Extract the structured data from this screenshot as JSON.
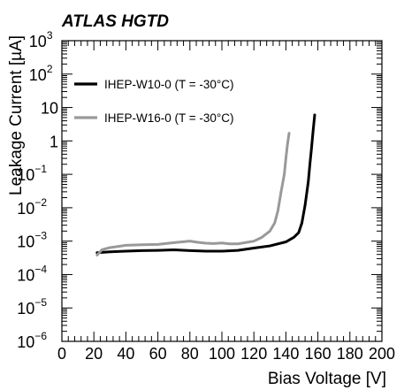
{
  "chart_data": {
    "type": "line",
    "experiment_label": "ATLAS HGTD",
    "xlabel": "Bias Voltage [V]",
    "ylabel": "Leakage Current [µA]",
    "xlim": [
      0,
      200
    ],
    "ylim": [
      1e-06,
      1000
    ],
    "yscale": "log",
    "x_ticks": [
      0,
      20,
      40,
      60,
      80,
      100,
      120,
      140,
      160,
      180,
      200
    ],
    "x_tick_labels": [
      "0",
      "20",
      "40",
      "60",
      "80",
      "100",
      "120",
      "140",
      "160",
      "180",
      "200"
    ],
    "y_ticks": [
      {
        "value": 1e-06,
        "label": "10",
        "exp": "−6"
      },
      {
        "value": 1e-05,
        "label": "10",
        "exp": "−5"
      },
      {
        "value": 0.0001,
        "label": "10",
        "exp": "−4"
      },
      {
        "value": 0.001,
        "label": "10",
        "exp": "−3"
      },
      {
        "value": 0.01,
        "label": "10",
        "exp": "−2"
      },
      {
        "value": 0.1,
        "label": "10",
        "exp": "−1"
      },
      {
        "value": 1,
        "label": "1",
        "exp": ""
      },
      {
        "value": 10,
        "label": "10",
        "exp": ""
      },
      {
        "value": 100,
        "label": "10",
        "exp": "2"
      },
      {
        "value": 1000,
        "label": "10",
        "exp": "3"
      }
    ],
    "legend_position": "top-left",
    "grid": false,
    "series": [
      {
        "name": "IHEP-W10-0 (T = -30°C)",
        "color": "#000000",
        "x": [
          22,
          30,
          40,
          50,
          60,
          70,
          80,
          90,
          100,
          110,
          120,
          130,
          140,
          145,
          148,
          150,
          152,
          154,
          155,
          156,
          157,
          158
        ],
        "y": [
          0.00045,
          0.00048,
          0.0005,
          0.00052,
          0.00053,
          0.00055,
          0.00052,
          0.0005,
          0.0005,
          0.00053,
          0.00062,
          0.00072,
          0.00095,
          0.0013,
          0.0018,
          0.0035,
          0.012,
          0.06,
          0.2,
          0.6,
          2.0,
          6.0
        ]
      },
      {
        "name": "IHEP-W16-0 (T = -30°C)",
        "color": "#999999",
        "x": [
          22,
          25,
          30,
          40,
          50,
          60,
          70,
          75,
          80,
          85,
          90,
          95,
          100,
          105,
          110,
          120,
          125,
          130,
          133,
          135,
          137,
          139,
          140,
          141,
          142
        ],
        "y": [
          0.00038,
          0.00055,
          0.00064,
          0.00075,
          0.00078,
          0.0008,
          0.0009,
          0.00095,
          0.001,
          0.00092,
          0.00087,
          0.00085,
          0.00088,
          0.00083,
          0.00083,
          0.001,
          0.0013,
          0.002,
          0.0035,
          0.008,
          0.03,
          0.1,
          0.3,
          0.8,
          1.7
        ]
      }
    ]
  }
}
